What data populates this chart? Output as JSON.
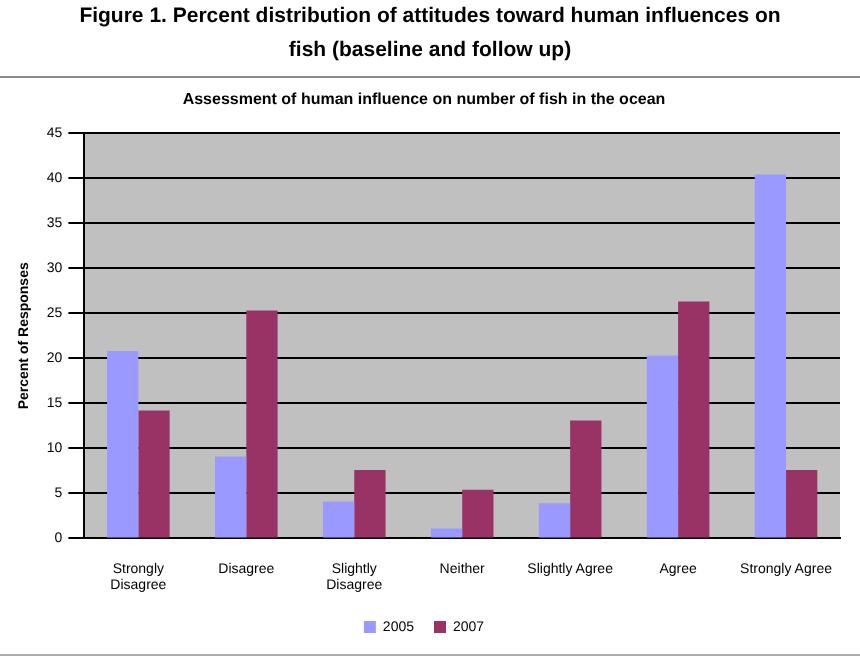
{
  "chart_data": {
    "type": "bar",
    "title": "Figure 1. Percent distribution of attitudes toward human influences on fish (baseline and follow up)",
    "subtitle": "Assessment of human influence on number of fish in the ocean",
    "ylabel": "Percent of Responses",
    "categories": [
      "Strongly Disagree",
      "Disagree",
      "Slightly Disagree",
      "Neither",
      "Slightly Agree",
      "Agree",
      "Strongly Agree"
    ],
    "series": [
      {
        "name": "2005",
        "color": "#9999ff",
        "values": [
          20.8,
          9.1,
          4.1,
          1.1,
          3.9,
          20.3,
          40.4
        ]
      },
      {
        "name": "2007",
        "color": "#993366",
        "values": [
          14.2,
          25.3,
          7.6,
          5.4,
          13.1,
          26.3,
          7.6
        ]
      }
    ],
    "ylim": [
      0,
      45
    ],
    "yticks": [
      0,
      5,
      10,
      15,
      20,
      25,
      30,
      35,
      40,
      45
    ],
    "grid": "y",
    "legend": "bottom"
  }
}
